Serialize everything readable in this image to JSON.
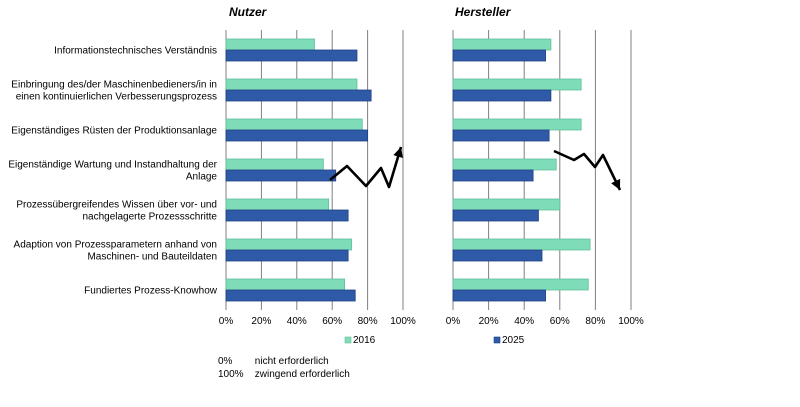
{
  "chart_data": [
    {
      "type": "bar",
      "orientation": "horizontal",
      "title": "Nutzer",
      "categories": [
        [
          "Informationstechnisches Verständnis"
        ],
        [
          "Einbringung des/der Maschinenbedieners/in in",
          "einen kontinuierlichen Verbesserungsprozess"
        ],
        [
          "Eigenständiges Rüsten der Produktionsanlage"
        ],
        [
          "Eigenständige Wartung und Instandhaltung der",
          "Anlage"
        ],
        [
          "Prozessübergreifendes Wissen über vor- und",
          "nachgelagerte Prozessschritte"
        ],
        [
          "Adaption von Prozessparametern anhand von",
          "Maschinen- und Bauteildaten"
        ],
        [
          "Fundiertes Prozess-Knowhow"
        ]
      ],
      "series": [
        {
          "name": "2016",
          "values": [
            50,
            74,
            77,
            55,
            58,
            71,
            67
          ]
        },
        {
          "name": "2025",
          "values": [
            74,
            82,
            80,
            62,
            69,
            69,
            73
          ]
        }
      ],
      "xlim": [
        0,
        100
      ],
      "xticks": [
        "0%",
        "20%",
        "40%",
        "60%",
        "80%",
        "100%"
      ],
      "grid": true,
      "trend_arrow": "up"
    },
    {
      "type": "bar",
      "orientation": "horizontal",
      "title": "Hersteller",
      "categories": [
        [
          "Informationstechnisches Verständnis"
        ],
        [
          "Einbringung des/der Maschinenbedieners/in in",
          "einen kontinuierlichen Verbesserungsprozess"
        ],
        [
          "Eigenständiges Rüsten der Produktionsanlage"
        ],
        [
          "Eigenständige Wartung und Instandhaltung der",
          "Anlage"
        ],
        [
          "Prozessübergreifendes Wissen über vor- und",
          "nachgelagerte Prozessschritte"
        ],
        [
          "Adaption von Prozessparametern anhand von",
          "Maschinen- und Bauteildaten"
        ],
        [
          "Fundiertes Prozess-Knowhow"
        ]
      ],
      "series": [
        {
          "name": "2016",
          "values": [
            55,
            72,
            72,
            58,
            60,
            77,
            76
          ]
        },
        {
          "name": "2025",
          "values": [
            52,
            55,
            54,
            45,
            48,
            50,
            52
          ]
        }
      ],
      "xlim": [
        0,
        100
      ],
      "xticks": [
        "0%",
        "20%",
        "40%",
        "60%",
        "80%",
        "100%"
      ],
      "grid": true,
      "trend_arrow": "down"
    }
  ],
  "colors": {
    "series_2016": "#7fdcb8",
    "series_2016_edge": "#5fc09a",
    "series_2025": "#2e5aa8",
    "series_2025_edge": "#1f4184",
    "grid": "#7f7f7f",
    "arrow": "#000000"
  },
  "legend": {
    "placement": "bottom",
    "items": [
      "2016",
      "2025"
    ]
  },
  "notes": [
    {
      "value": "0%",
      "text": "nicht erforderlich"
    },
    {
      "value": "100%",
      "text": "zwingend erforderlich"
    }
  ]
}
